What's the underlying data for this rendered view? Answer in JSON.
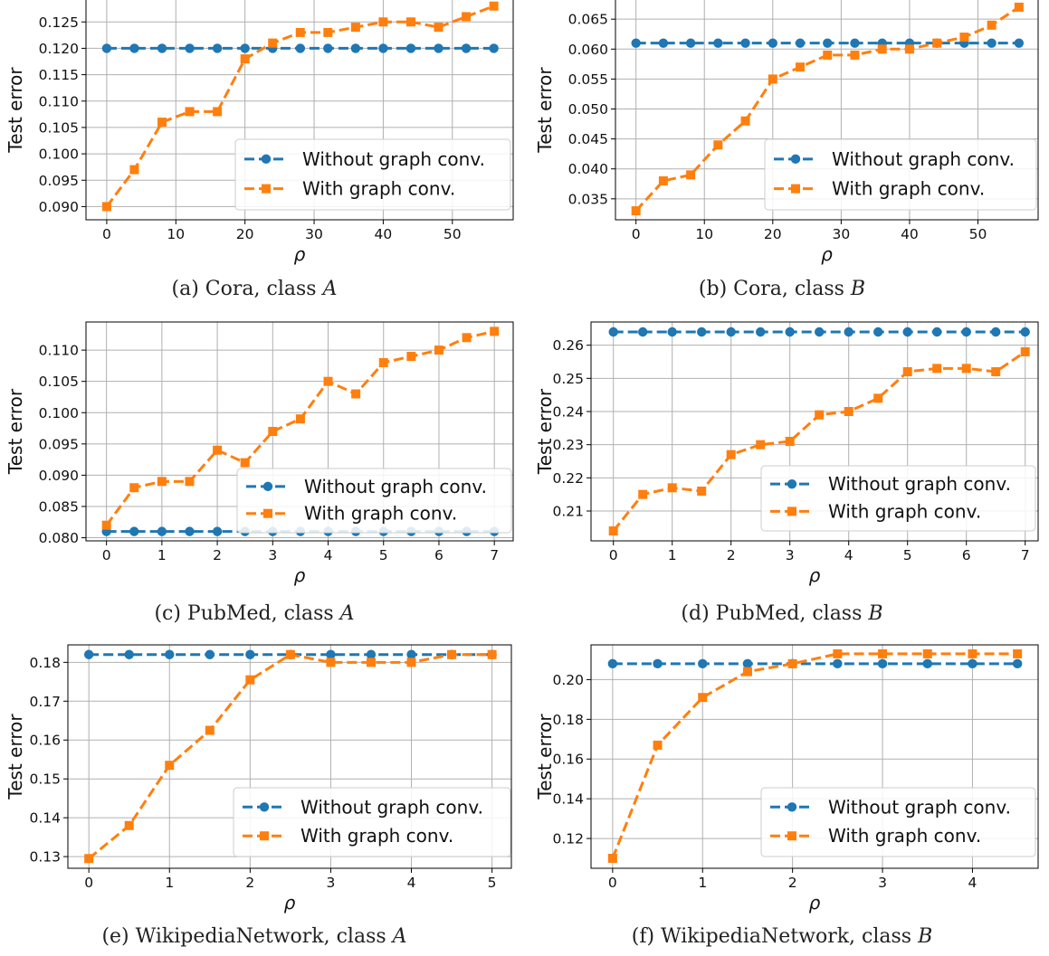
{
  "figure": {
    "panels": [
      {
        "caption": {
          "prefix": "(a) Cora, class",
          "var": "A"
        }
      },
      {
        "caption": {
          "prefix": "(b) Cora, class",
          "var": "B"
        }
      },
      {
        "caption": {
          "prefix": "(c) PubMed, class",
          "var": "A"
        }
      },
      {
        "caption": {
          "prefix": "(d) PubMed, class",
          "var": "B"
        }
      },
      {
        "caption": {
          "prefix": "(e) WikipediaNetwork, class",
          "var": "A"
        }
      },
      {
        "caption": {
          "prefix": "(f) WikipediaNetwork, class",
          "var": "B"
        }
      }
    ],
    "colors": {
      "without": "#1f77b4",
      "with": "#ff7f0e",
      "grid": "#b0b0b0",
      "axis": "#000000"
    }
  },
  "chart_data": [
    {
      "type": "line",
      "title": "",
      "xlabel": "ρ",
      "ylabel": "Test error",
      "grid": true,
      "legend_position": "lower-right",
      "xlim": [
        -3,
        58.8
      ],
      "ylim": [
        0.0875,
        0.1295
      ],
      "xticks": [
        0,
        10,
        20,
        30,
        40,
        50
      ],
      "yticks": [
        0.09,
        0.095,
        0.1,
        0.105,
        0.11,
        0.115,
        0.12,
        0.125
      ],
      "yticks_labels": [
        "0.090",
        "0.095",
        "0.100",
        "0.105",
        "0.110",
        "0.115",
        "0.120",
        "0.125"
      ],
      "x": [
        0,
        4,
        8,
        12,
        16,
        20,
        24,
        28,
        32,
        36,
        40,
        44,
        48,
        52,
        56
      ],
      "series": [
        {
          "name": "Without graph conv.",
          "values": [
            0.12,
            0.12,
            0.12,
            0.12,
            0.12,
            0.12,
            0.12,
            0.12,
            0.12,
            0.12,
            0.12,
            0.12,
            0.12,
            0.12,
            0.12
          ]
        },
        {
          "name": "With graph conv.",
          "values": [
            0.09,
            0.097,
            0.106,
            0.108,
            0.108,
            0.118,
            0.121,
            0.123,
            0.123,
            0.124,
            0.125,
            0.125,
            0.124,
            0.126,
            0.128
          ]
        }
      ]
    },
    {
      "type": "line",
      "title": "",
      "xlabel": "ρ",
      "ylabel": "Test error",
      "grid": true,
      "legend_position": "lower-right",
      "xlim": [
        -3,
        58.8
      ],
      "ylim": [
        0.0315,
        0.0685
      ],
      "xticks": [
        0,
        10,
        20,
        30,
        40,
        50
      ],
      "yticks": [
        0.035,
        0.04,
        0.045,
        0.05,
        0.055,
        0.06,
        0.065
      ],
      "yticks_labels": [
        "0.035",
        "0.040",
        "0.045",
        "0.050",
        "0.055",
        "0.060",
        "0.065"
      ],
      "x": [
        0,
        4,
        8,
        12,
        16,
        20,
        24,
        28,
        32,
        36,
        40,
        44,
        48,
        52,
        56
      ],
      "series": [
        {
          "name": "Without graph conv.",
          "values": [
            0.061,
            0.061,
            0.061,
            0.061,
            0.061,
            0.061,
            0.061,
            0.061,
            0.061,
            0.061,
            0.061,
            0.061,
            0.061,
            0.061,
            0.061
          ]
        },
        {
          "name": "With graph conv.",
          "values": [
            0.033,
            0.038,
            0.039,
            0.044,
            0.048,
            0.055,
            0.057,
            0.059,
            0.059,
            0.06,
            0.06,
            0.061,
            0.062,
            0.064,
            0.067
          ]
        }
      ]
    },
    {
      "type": "line",
      "title": "",
      "xlabel": "ρ",
      "ylabel": "Test error",
      "grid": true,
      "legend_position": "lower-right",
      "xlim": [
        -0.37,
        7.34
      ],
      "ylim": [
        0.0795,
        0.1145
      ],
      "xticks": [
        0,
        1,
        2,
        3,
        4,
        5,
        6,
        7
      ],
      "yticks": [
        0.08,
        0.085,
        0.09,
        0.095,
        0.1,
        0.105,
        0.11
      ],
      "yticks_labels": [
        "0.080",
        "0.085",
        "0.090",
        "0.095",
        "0.100",
        "0.105",
        "0.110"
      ],
      "x": [
        0,
        0.5,
        1,
        1.5,
        2,
        2.5,
        3,
        3.5,
        4,
        4.5,
        5,
        5.5,
        6,
        6.5,
        7
      ],
      "series": [
        {
          "name": "Without graph conv.",
          "values": [
            0.081,
            0.081,
            0.081,
            0.081,
            0.081,
            0.081,
            0.081,
            0.081,
            0.081,
            0.081,
            0.081,
            0.081,
            0.081,
            0.081,
            0.081
          ]
        },
        {
          "name": "With graph conv.",
          "values": [
            0.082,
            0.088,
            0.089,
            0.089,
            0.094,
            0.092,
            0.097,
            0.099,
            0.105,
            0.103,
            0.108,
            0.109,
            0.11,
            0.112,
            0.113
          ]
        }
      ]
    },
    {
      "type": "line",
      "title": "",
      "xlabel": "ρ",
      "ylabel": "Test error",
      "grid": true,
      "legend_position": "lower-right",
      "xlim": [
        -0.38,
        7.22
      ],
      "ylim": [
        0.201,
        0.267
      ],
      "xticks": [
        0,
        1,
        2,
        3,
        4,
        5,
        6,
        7
      ],
      "yticks": [
        0.21,
        0.22,
        0.23,
        0.24,
        0.25,
        0.26
      ],
      "yticks_labels": [
        "0.21",
        "0.22",
        "0.23",
        "0.24",
        "0.25",
        "0.26"
      ],
      "x": [
        0,
        0.5,
        1,
        1.5,
        2,
        2.5,
        3,
        3.5,
        4,
        4.5,
        5,
        5.5,
        6,
        6.5,
        7
      ],
      "series": [
        {
          "name": "Without graph conv.",
          "values": [
            0.264,
            0.264,
            0.264,
            0.264,
            0.264,
            0.264,
            0.264,
            0.264,
            0.264,
            0.264,
            0.264,
            0.264,
            0.264,
            0.264,
            0.264
          ]
        },
        {
          "name": "With graph conv.",
          "values": [
            0.204,
            0.215,
            0.217,
            0.216,
            0.227,
            0.23,
            0.231,
            0.239,
            0.24,
            0.244,
            0.252,
            0.253,
            0.253,
            0.252,
            0.258
          ]
        }
      ]
    },
    {
      "type": "line",
      "title": "",
      "xlabel": "ρ",
      "ylabel": "Test error",
      "grid": true,
      "legend_position": "lower-right",
      "xlim": [
        -0.26,
        5.24
      ],
      "ylim": [
        0.127,
        0.1845
      ],
      "xticks": [
        0,
        1,
        2,
        3,
        4,
        5
      ],
      "yticks": [
        0.13,
        0.14,
        0.15,
        0.16,
        0.17,
        0.18
      ],
      "yticks_labels": [
        "0.13",
        "0.14",
        "0.15",
        "0.16",
        "0.17",
        "0.18"
      ],
      "x": [
        0,
        0.5,
        1,
        1.5,
        2,
        2.5,
        3,
        3.5,
        4,
        4.5,
        5
      ],
      "series": [
        {
          "name": "Without graph conv.",
          "values": [
            0.182,
            0.182,
            0.182,
            0.182,
            0.182,
            0.182,
            0.182,
            0.182,
            0.182,
            0.182,
            0.182
          ]
        },
        {
          "name": "With graph conv.",
          "values": [
            0.1295,
            0.138,
            0.1535,
            0.1625,
            0.1755,
            0.182,
            0.18,
            0.18,
            0.18,
            0.182,
            0.182
          ]
        }
      ]
    },
    {
      "type": "line",
      "title": "",
      "xlabel": "ρ",
      "ylabel": "Test error",
      "grid": true,
      "legend_position": "lower-right",
      "xlim": [
        -0.24,
        4.73
      ],
      "ylim": [
        0.105,
        0.2175
      ],
      "xticks": [
        0,
        1,
        2,
        3,
        4
      ],
      "yticks": [
        0.12,
        0.14,
        0.16,
        0.18,
        0.2
      ],
      "yticks_labels": [
        "0.12",
        "0.14",
        "0.16",
        "0.18",
        "0.20"
      ],
      "x": [
        0,
        0.5,
        1,
        1.5,
        2,
        2.5,
        3,
        3.5,
        4,
        4.5
      ],
      "series": [
        {
          "name": "Without graph conv.",
          "values": [
            0.208,
            0.208,
            0.208,
            0.208,
            0.208,
            0.208,
            0.208,
            0.208,
            0.208,
            0.208
          ]
        },
        {
          "name": "With graph conv.",
          "values": [
            0.11,
            0.167,
            0.191,
            0.204,
            0.208,
            0.213,
            0.213,
            0.213,
            0.213,
            0.213
          ]
        }
      ]
    }
  ]
}
